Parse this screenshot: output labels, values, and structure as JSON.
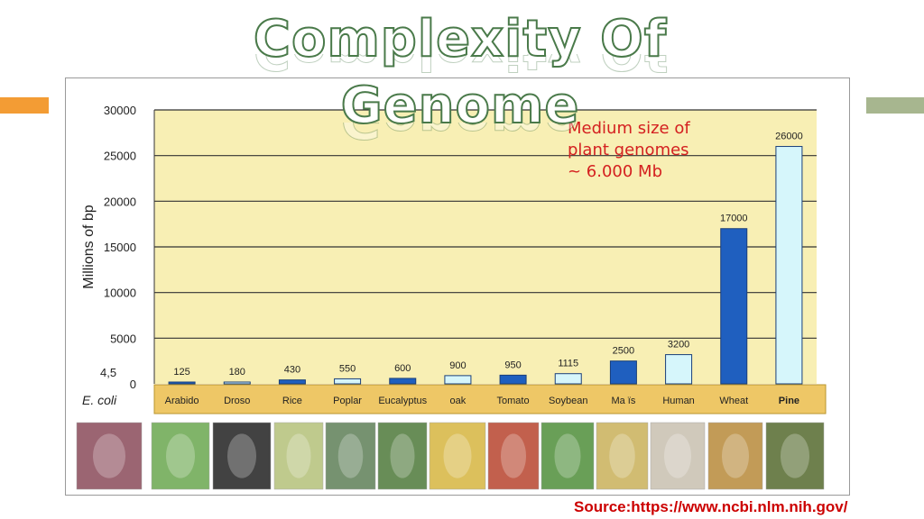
{
  "slide": {
    "title_line1": "Complexity Of",
    "title_line2": "Genome",
    "source": "Source:https://www.ncbi.nlm.nih.gov/"
  },
  "colors": {
    "accent_left": "#f39c34",
    "accent_right": "#a7b68f",
    "plot_bg": "#f8efb4",
    "label_band": "#eec766",
    "bar_dark": "#1f5fbf",
    "bar_light": "#d6f6fb",
    "annotation": "#d42020"
  },
  "chart_data": {
    "type": "bar",
    "ylabel": "Millions of bp",
    "ylim": [
      0,
      30000
    ],
    "yticks": [
      0,
      5000,
      10000,
      15000,
      20000,
      25000,
      30000
    ],
    "categories": [
      "Arabido",
      "Droso",
      "Rice",
      "Poplar",
      "Eucalyptus",
      "oak",
      "Tomato",
      "Soybean",
      "Ma ïs",
      "Human",
      "Wheat",
      "Pine"
    ],
    "values": [
      125,
      180,
      430,
      550,
      600,
      900,
      950,
      1115,
      2500,
      3200,
      17000,
      26000
    ],
    "value_labels": [
      "125",
      "180",
      "430",
      "550",
      "600",
      "900",
      "950",
      "1115",
      "2500",
      "3200",
      "17000",
      "26000"
    ],
    "bar_styles": [
      "dark",
      "light",
      "dark",
      "light",
      "dark",
      "light",
      "dark",
      "light",
      "dark",
      "light",
      "dark",
      "light"
    ],
    "ecoli_value_label": "4,5",
    "ecoli_label": "E. coli",
    "annotation": [
      "Medium size of",
      "plant genomes",
      "~ 6.000 Mb"
    ]
  },
  "thumbnails": [
    {
      "name": "ecoli-bacteria-icon",
      "color": "#8a4b5a"
    },
    {
      "name": "arabidopsis-plant-icon",
      "color": "#6aa84f"
    },
    {
      "name": "drosophila-fly-icon",
      "color": "#222222"
    },
    {
      "name": "rice-plant-icon",
      "color": "#b5c17a"
    },
    {
      "name": "poplar-tree-icon",
      "color": "#5f7f58"
    },
    {
      "name": "eucalyptus-tree-icon",
      "color": "#4e7a3a"
    },
    {
      "name": "oak-tree-icon",
      "color": "#d6b640"
    },
    {
      "name": "tomato-plant-icon",
      "color": "#b8452f"
    },
    {
      "name": "soybean-leaves-icon",
      "color": "#4f8f3a"
    },
    {
      "name": "maize-cob-icon",
      "color": "#c9b15a"
    },
    {
      "name": "human-figure-icon",
      "color": "#c8c0b0"
    },
    {
      "name": "wheat-ears-icon",
      "color": "#b88a3a"
    },
    {
      "name": "pine-tree-icon",
      "color": "#556b2f"
    }
  ]
}
